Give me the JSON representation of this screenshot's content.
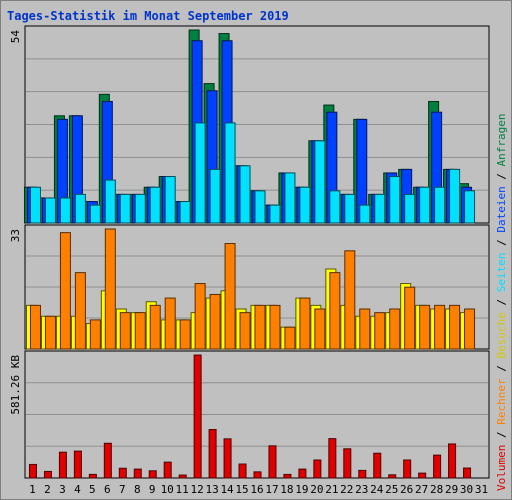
{
  "title": "Tages-Statistik im Monat September 2019",
  "chart_data": [
    {
      "type": "bar",
      "panel": "top",
      "max_label": "54",
      "ylim": [
        0,
        54
      ],
      "categories": [
        "1",
        "2",
        "3",
        "4",
        "5",
        "6",
        "7",
        "8",
        "9",
        "10",
        "11",
        "12",
        "13",
        "14",
        "15",
        "16",
        "17",
        "18",
        "19",
        "20",
        "21",
        "22",
        "23",
        "24",
        "25",
        "26",
        "27",
        "28",
        "29",
        "30",
        "31"
      ],
      "series": [
        {
          "name": "Anfragen",
          "color": "#008040",
          "values": [
            10,
            7,
            30,
            30,
            6,
            36,
            8,
            8,
            10,
            13,
            6,
            54,
            39,
            53,
            16,
            9,
            5,
            14,
            10,
            23,
            33,
            8,
            29,
            8,
            14,
            15,
            10,
            34,
            15,
            11,
            0
          ]
        },
        {
          "name": "Dateien",
          "color": "#0040ff",
          "values": [
            10,
            7,
            29,
            30,
            6,
            34,
            8,
            8,
            10,
            13,
            6,
            51,
            37,
            51,
            16,
            9,
            5,
            14,
            10,
            23,
            31,
            8,
            29,
            8,
            14,
            15,
            10,
            31,
            15,
            10,
            0
          ]
        },
        {
          "name": "Seiten",
          "color": "#00e0ff",
          "values": [
            10,
            7,
            7,
            8,
            5,
            12,
            8,
            8,
            10,
            13,
            6,
            28,
            15,
            28,
            16,
            9,
            5,
            14,
            10,
            23,
            9,
            8,
            5,
            8,
            13,
            8,
            10,
            10,
            15,
            9,
            0
          ]
        }
      ]
    },
    {
      "type": "bar",
      "panel": "middle",
      "max_label": "33",
      "ylim": [
        0,
        33
      ],
      "categories": [
        "1",
        "2",
        "3",
        "4",
        "5",
        "6",
        "7",
        "8",
        "9",
        "10",
        "11",
        "12",
        "13",
        "14",
        "15",
        "16",
        "17",
        "18",
        "19",
        "20",
        "21",
        "22",
        "23",
        "24",
        "25",
        "26",
        "27",
        "28",
        "29",
        "30",
        "31"
      ],
      "series": [
        {
          "name": "Besuche",
          "color": "#ffff00",
          "values": [
            12,
            9,
            9,
            9,
            7,
            16,
            11,
            10,
            13,
            8,
            8,
            10,
            14,
            16,
            11,
            12,
            12,
            6,
            14,
            12,
            22,
            12,
            9,
            9,
            10,
            18,
            12,
            11,
            11,
            10,
            0
          ]
        },
        {
          "name": "Rechner",
          "color": "#ff8000",
          "values": [
            12,
            9,
            32,
            21,
            8,
            33,
            10,
            10,
            12,
            14,
            8,
            18,
            15,
            29,
            10,
            12,
            12,
            6,
            14,
            11,
            21,
            27,
            11,
            10,
            11,
            17,
            12,
            12,
            12,
            11,
            0
          ]
        }
      ]
    },
    {
      "type": "bar",
      "panel": "bottom",
      "max_label": "581.26 KB",
      "ylim": [
        0,
        581.26
      ],
      "categories": [
        "1",
        "2",
        "3",
        "4",
        "5",
        "6",
        "7",
        "8",
        "9",
        "10",
        "11",
        "12",
        "13",
        "14",
        "15",
        "16",
        "17",
        "18",
        "19",
        "20",
        "21",
        "22",
        "23",
        "24",
        "25",
        "26",
        "27",
        "28",
        "29",
        "30",
        "31"
      ],
      "series": [
        {
          "name": "Volumen",
          "color": "#e00000",
          "values": [
            64,
            31,
            122,
            127,
            17,
            164,
            46,
            42,
            34,
            75,
            14,
            581,
            229,
            185,
            66,
            29,
            152,
            17,
            42,
            85,
            186,
            138,
            36,
            117,
            15,
            85,
            23,
            108,
            161,
            47,
            0
          ]
        }
      ]
    }
  ],
  "weekend_days": [
    "1",
    "7",
    "8",
    "14",
    "15",
    "21",
    "22",
    "28",
    "29"
  ],
  "legend": [
    {
      "text": "Volumen",
      "color": "#e00000"
    },
    {
      "text": "Rechner",
      "color": "#ff8000"
    },
    {
      "text": "Besuche",
      "color": "#ffff00"
    },
    {
      "text": "Seiten",
      "color": "#00e0ff"
    },
    {
      "text": "Dateien",
      "color": "#0040ff"
    },
    {
      "text": "Anfragen",
      "color": "#008040"
    }
  ],
  "legend_separator": "/"
}
